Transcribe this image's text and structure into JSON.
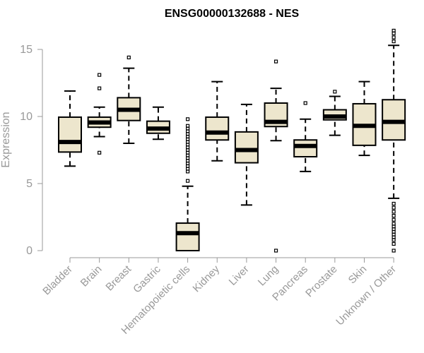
{
  "chart_data": {
    "type": "box",
    "title": "ENSG00000132688 - NES",
    "ylabel": "Expression",
    "xlabel": "",
    "ylim": [
      0,
      15
    ],
    "yticks": [
      0,
      5,
      10,
      15
    ],
    "grid": false,
    "legend": "none",
    "box_fill": "#ede6cd",
    "categories": [
      "Bladder",
      "Brain",
      "Breast",
      "Gastric",
      "Hematopoietic cells",
      "Kidney",
      "Liver",
      "Lung",
      "Pancreas",
      "Prostate",
      "Skin",
      "Unknown / Other"
    ],
    "boxes": [
      {
        "whisker_low": 6.3,
        "q1": 7.35,
        "median": 8.1,
        "q3": 9.95,
        "whisker_high": 11.9,
        "outliers": []
      },
      {
        "whisker_low": 8.5,
        "q1": 9.2,
        "median": 9.55,
        "q3": 9.95,
        "whisker_high": 10.7,
        "outliers": [
          7.3,
          12.1,
          13.1
        ]
      },
      {
        "whisker_low": 8.0,
        "q1": 9.7,
        "median": 10.5,
        "q3": 11.4,
        "whisker_high": 13.6,
        "outliers": [
          14.4
        ]
      },
      {
        "whisker_low": 8.3,
        "q1": 8.75,
        "median": 9.1,
        "q3": 9.65,
        "whisker_high": 10.7,
        "outliers": []
      },
      {
        "whisker_low": 0.0,
        "q1": 0.0,
        "median": 1.3,
        "q3": 2.05,
        "whisker_high": 4.8,
        "outliers": [
          5.2,
          5.9,
          6.1,
          6.3,
          6.5,
          6.7,
          6.9,
          7.1,
          7.3,
          7.5,
          7.7,
          7.9,
          8.1,
          8.3,
          8.5,
          8.7,
          8.9,
          9.1,
          9.3,
          9.8
        ]
      },
      {
        "whisker_low": 6.7,
        "q1": 8.25,
        "median": 8.8,
        "q3": 9.95,
        "whisker_high": 12.6,
        "outliers": []
      },
      {
        "whisker_low": 3.4,
        "q1": 6.55,
        "median": 7.5,
        "q3": 8.85,
        "whisker_high": 10.9,
        "outliers": []
      },
      {
        "whisker_low": 8.2,
        "q1": 9.25,
        "median": 9.6,
        "q3": 11.0,
        "whisker_high": 12.1,
        "outliers": [
          0.0,
          14.1
        ]
      },
      {
        "whisker_low": 5.9,
        "q1": 7.0,
        "median": 7.8,
        "q3": 8.25,
        "whisker_high": 9.8,
        "outliers": [
          11.0
        ]
      },
      {
        "whisker_low": 8.6,
        "q1": 9.75,
        "median": 10.0,
        "q3": 10.5,
        "whisker_high": 11.5,
        "outliers": [
          11.85
        ]
      },
      {
        "whisker_low": 7.1,
        "q1": 7.85,
        "median": 9.3,
        "q3": 10.95,
        "whisker_high": 12.6,
        "outliers": []
      },
      {
        "whisker_low": 3.9,
        "q1": 8.25,
        "median": 9.6,
        "q3": 11.25,
        "whisker_high": 15.3,
        "outliers": [
          0.0,
          0.5,
          0.8,
          1.0,
          1.2,
          1.4,
          1.6,
          1.8,
          2.0,
          2.3,
          2.6,
          2.9,
          3.2,
          3.5,
          15.6,
          15.9,
          16.2,
          16.4
        ]
      }
    ]
  }
}
